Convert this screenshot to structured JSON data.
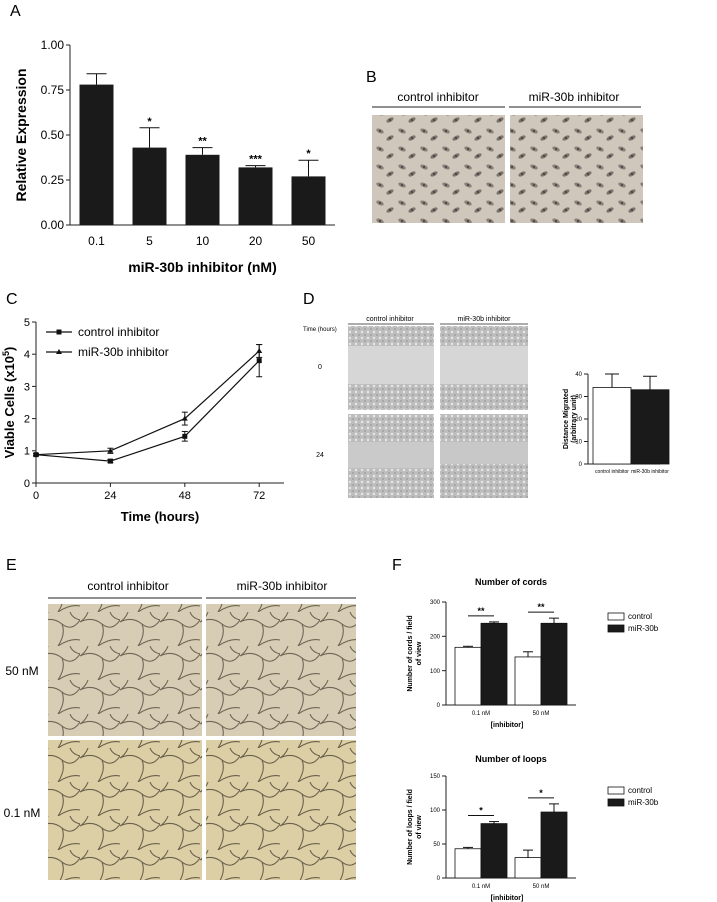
{
  "panel_labels": [
    "A",
    "B",
    "C",
    "D",
    "E",
    "F"
  ],
  "chart_data": [
    {
      "id": "A",
      "type": "bar",
      "categories": [
        "0.1",
        "5",
        "10",
        "20",
        "50"
      ],
      "values": [
        0.78,
        0.43,
        0.39,
        0.32,
        0.27
      ],
      "errors": [
        0.06,
        0.11,
        0.04,
        0.01,
        0.09
      ],
      "annotations": [
        "",
        "*",
        "**",
        "***",
        "*"
      ],
      "ylim": [
        0,
        1.0
      ],
      "yticks": [
        "0.00",
        "0.25",
        "0.50",
        "0.75",
        "1.00"
      ],
      "xlabel": "miR-30b inhibitor (nM)",
      "ylabel": "Relative Expression"
    },
    {
      "id": "C",
      "type": "line",
      "x": [
        0,
        24,
        48,
        72
      ],
      "xticks": [
        "0",
        "24",
        "48",
        "72"
      ],
      "yticks": [
        "0",
        "1",
        "2",
        "3",
        "4",
        "5"
      ],
      "ylim": [
        0,
        5
      ],
      "xlabel": "Time (hours)",
      "ylabel": "Viable Cells (x10",
      "ylabel_sup": "5",
      "ylabel_end": ")",
      "legend": "top-left",
      "series": [
        {
          "name": "control inhibitor",
          "values": [
            0.88,
            0.68,
            1.45,
            3.8
          ],
          "errors": [
            0.03,
            0.05,
            0.15,
            0.5
          ]
        },
        {
          "name": "miR-30b inhibitor",
          "values": [
            0.88,
            1.0,
            2.0,
            4.1
          ],
          "errors": [
            0.03,
            0.08,
            0.2,
            0.2
          ]
        }
      ]
    },
    {
      "id": "D",
      "type": "bar",
      "categories": [
        "control inhibitor",
        "miR-30b inhibitor"
      ],
      "values": [
        34,
        33
      ],
      "errors": [
        6,
        6
      ],
      "colors": [
        "#ffffff",
        "#1a1a1a"
      ],
      "ylim": [
        0,
        40
      ],
      "yticks": [
        "0",
        "10",
        "20",
        "30",
        "40"
      ],
      "ylabel": "Distance Migrated",
      "ylabel2": "(arbitrary unit)"
    },
    {
      "id": "F1",
      "type": "bar",
      "title": "Number of cords",
      "categories": [
        "0.1 nM",
        "50 nM"
      ],
      "xlabel": "[inhibitor]",
      "ylabel": "Number of cords / field",
      "ylabel2": "of view",
      "ylim": [
        0,
        300
      ],
      "yticks": [
        "0",
        "100",
        "200",
        "300"
      ],
      "series": [
        {
          "name": "control",
          "values": [
            168,
            140
          ],
          "errors": [
            3,
            15
          ],
          "color": "#ffffff"
        },
        {
          "name": "miR-30b",
          "values": [
            238,
            238
          ],
          "errors": [
            4,
            15
          ],
          "color": "#1a1a1a"
        }
      ],
      "annotations": [
        "**",
        "**"
      ]
    },
    {
      "id": "F2",
      "type": "bar",
      "title": "Number of loops",
      "categories": [
        "0.1 nM",
        "50 nM"
      ],
      "xlabel": "[inhibitor]",
      "ylabel": "Number of loops / field",
      "ylabel2": "of view",
      "ylim": [
        0,
        150
      ],
      "yticks": [
        "0",
        "50",
        "100",
        "150"
      ],
      "series": [
        {
          "name": "control",
          "values": [
            43,
            30
          ],
          "errors": [
            2,
            11
          ],
          "color": "#ffffff"
        },
        {
          "name": "miR-30b",
          "values": [
            80,
            97
          ],
          "errors": [
            3,
            12
          ],
          "color": "#1a1a1a"
        }
      ],
      "annotations": [
        "*",
        "*"
      ]
    }
  ],
  "panel_b": {
    "labels": [
      "control inhibitor",
      "miR-30b inhibitor"
    ]
  },
  "panel_d": {
    "headers": [
      "control inhibitor",
      "miR-30b inhibitor"
    ],
    "time_label": "Time (hours)",
    "rows": [
      "0",
      "24"
    ]
  },
  "panel_e": {
    "headers": [
      "control inhibitor",
      "miR-30b inhibitor"
    ],
    "rows": [
      "50 nM",
      "0.1 nM"
    ]
  }
}
